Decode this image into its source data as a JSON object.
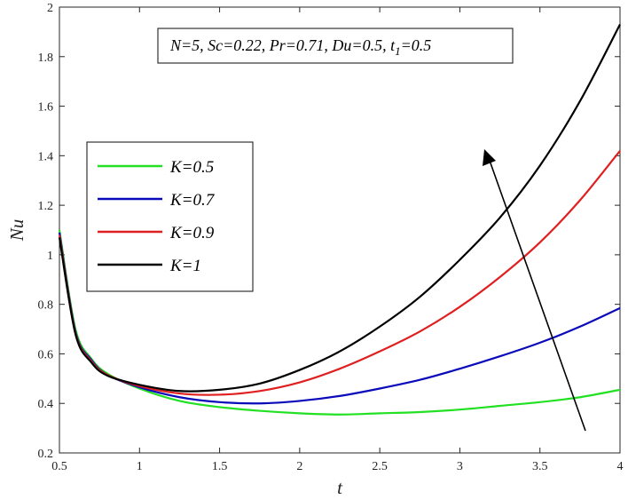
{
  "chart_data": {
    "type": "line",
    "xlabel": "t",
    "ylabel": "Nu",
    "xlim": [
      0.5,
      4
    ],
    "ylim": [
      0.2,
      2
    ],
    "xticks": [
      "0.5",
      "1",
      "1.5",
      "2",
      "2.5",
      "3",
      "3.5",
      "4"
    ],
    "yticks": [
      "0.2",
      "0.4",
      "0.6",
      "0.8",
      "1",
      "1.2",
      "1.4",
      "1.6",
      "1.8",
      "2"
    ],
    "annotation": "N=5, Sc=0.22, Pr=0.71, Du=0.5, t",
    "annotation_sub": "1",
    "annotation_tail": "=0.5",
    "legend_position": "left",
    "x": [
      0.5,
      0.6,
      0.7,
      0.8,
      1.0,
      1.25,
      1.5,
      1.75,
      2.0,
      2.25,
      2.5,
      2.75,
      3.0,
      3.25,
      3.5,
      3.75,
      4.0
    ],
    "series": [
      {
        "name": "K=0.5",
        "color": "#22e022",
        "values": [
          1.1,
          0.7,
          0.58,
          0.52,
          0.46,
          0.41,
          0.385,
          0.37,
          0.36,
          0.355,
          0.36,
          0.365,
          0.375,
          0.39,
          0.405,
          0.425,
          0.455
        ]
      },
      {
        "name": "K=0.7",
        "color": "#0a0aba",
        "values": [
          1.09,
          0.69,
          0.575,
          0.515,
          0.465,
          0.425,
          0.405,
          0.4,
          0.41,
          0.43,
          0.46,
          0.495,
          0.54,
          0.59,
          0.645,
          0.71,
          0.785
        ]
      },
      {
        "name": "K=0.9",
        "color": "#e02020",
        "values": [
          1.08,
          0.685,
          0.57,
          0.515,
          0.47,
          0.44,
          0.435,
          0.45,
          0.485,
          0.54,
          0.61,
          0.69,
          0.79,
          0.91,
          1.05,
          1.22,
          1.42
        ]
      },
      {
        "name": "K=1",
        "color": "#000000",
        "values": [
          1.07,
          0.68,
          0.565,
          0.512,
          0.475,
          0.45,
          0.455,
          0.48,
          0.535,
          0.61,
          0.71,
          0.83,
          0.98,
          1.15,
          1.36,
          1.62,
          1.93
        ]
      }
    ]
  }
}
